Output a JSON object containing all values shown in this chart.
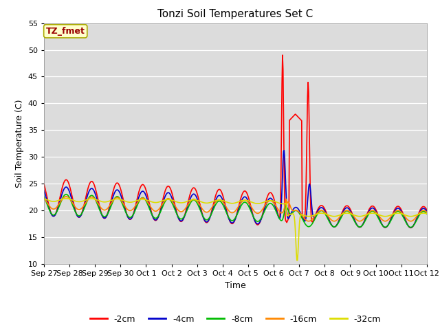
{
  "title": "Tonzi Soil Temperatures Set C",
  "xlabel": "Time",
  "ylabel": "Soil Temperature (C)",
  "ylim": [
    10,
    55
  ],
  "yticks": [
    10,
    15,
    20,
    25,
    30,
    35,
    40,
    45,
    50,
    55
  ],
  "legend_label": "TZ_fmet",
  "plot_bg_color": "#dcdcdc",
  "fig_bg_color": "#ffffff",
  "series": {
    "-2cm": {
      "color": "#ff0000",
      "linewidth": 1.2
    },
    "-4cm": {
      "color": "#0000cc",
      "linewidth": 1.2
    },
    "-8cm": {
      "color": "#00bb00",
      "linewidth": 1.2
    },
    "-16cm": {
      "color": "#ff8800",
      "linewidth": 1.2
    },
    "-32cm": {
      "color": "#dddd00",
      "linewidth": 1.2
    }
  },
  "xtick_labels": [
    "Sep 27",
    "Sep 28",
    "Sep 29",
    "Sep 30",
    "Oct 1",
    "Oct 2",
    "Oct 3",
    "Oct 4",
    "Oct 5",
    "Oct 6",
    "Oct 7",
    "Oct 8",
    "Oct 9",
    "Oct 10",
    "Oct 11",
    "Oct 12"
  ],
  "num_points": 720
}
